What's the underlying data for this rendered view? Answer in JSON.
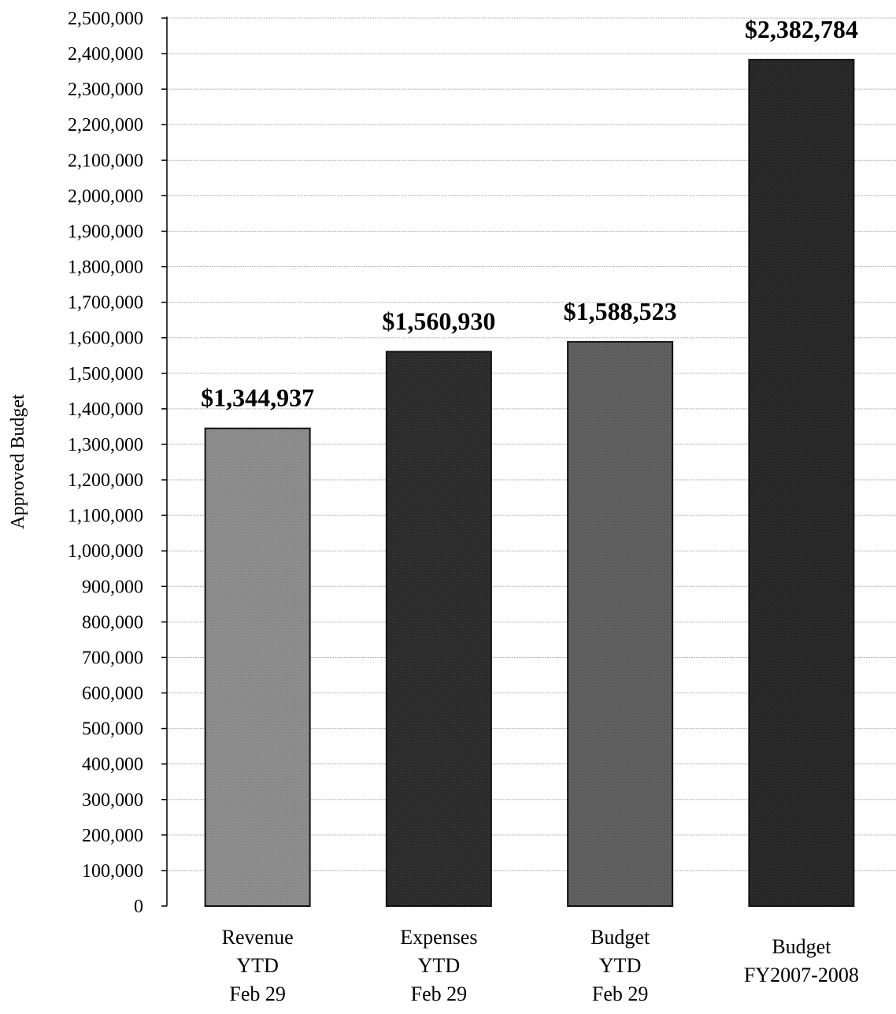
{
  "chart_data": {
    "type": "bar",
    "title": "",
    "xlabel": "",
    "ylabel": "Approved Budget",
    "ylim": [
      0,
      2500000
    ],
    "ytick_step": 100000,
    "grid": true,
    "legend": "none",
    "categories": [
      [
        "Revenue",
        "YTD",
        "Feb 29"
      ],
      [
        "Expenses",
        "YTD",
        "Feb 29"
      ],
      [
        "Budget",
        "YTD",
        "Feb 29"
      ],
      [
        "Budget",
        "FY2007-2008"
      ]
    ],
    "values": [
      1344937,
      1560930,
      1588523,
      2382784
    ],
    "data_labels": [
      "$1,344,937",
      "$1,560,930",
      "$1,588,523",
      "$2,382,784"
    ],
    "colors": {
      "revenue_bar": "#8c8c8c",
      "expenses_bar": "#2b2b2b",
      "budget_ytd_bar": "#5e5e5e",
      "budget_fy_bar": "#262626",
      "gridline": "#b5b5b5",
      "axis": "#000000",
      "text": "#000000"
    }
  }
}
